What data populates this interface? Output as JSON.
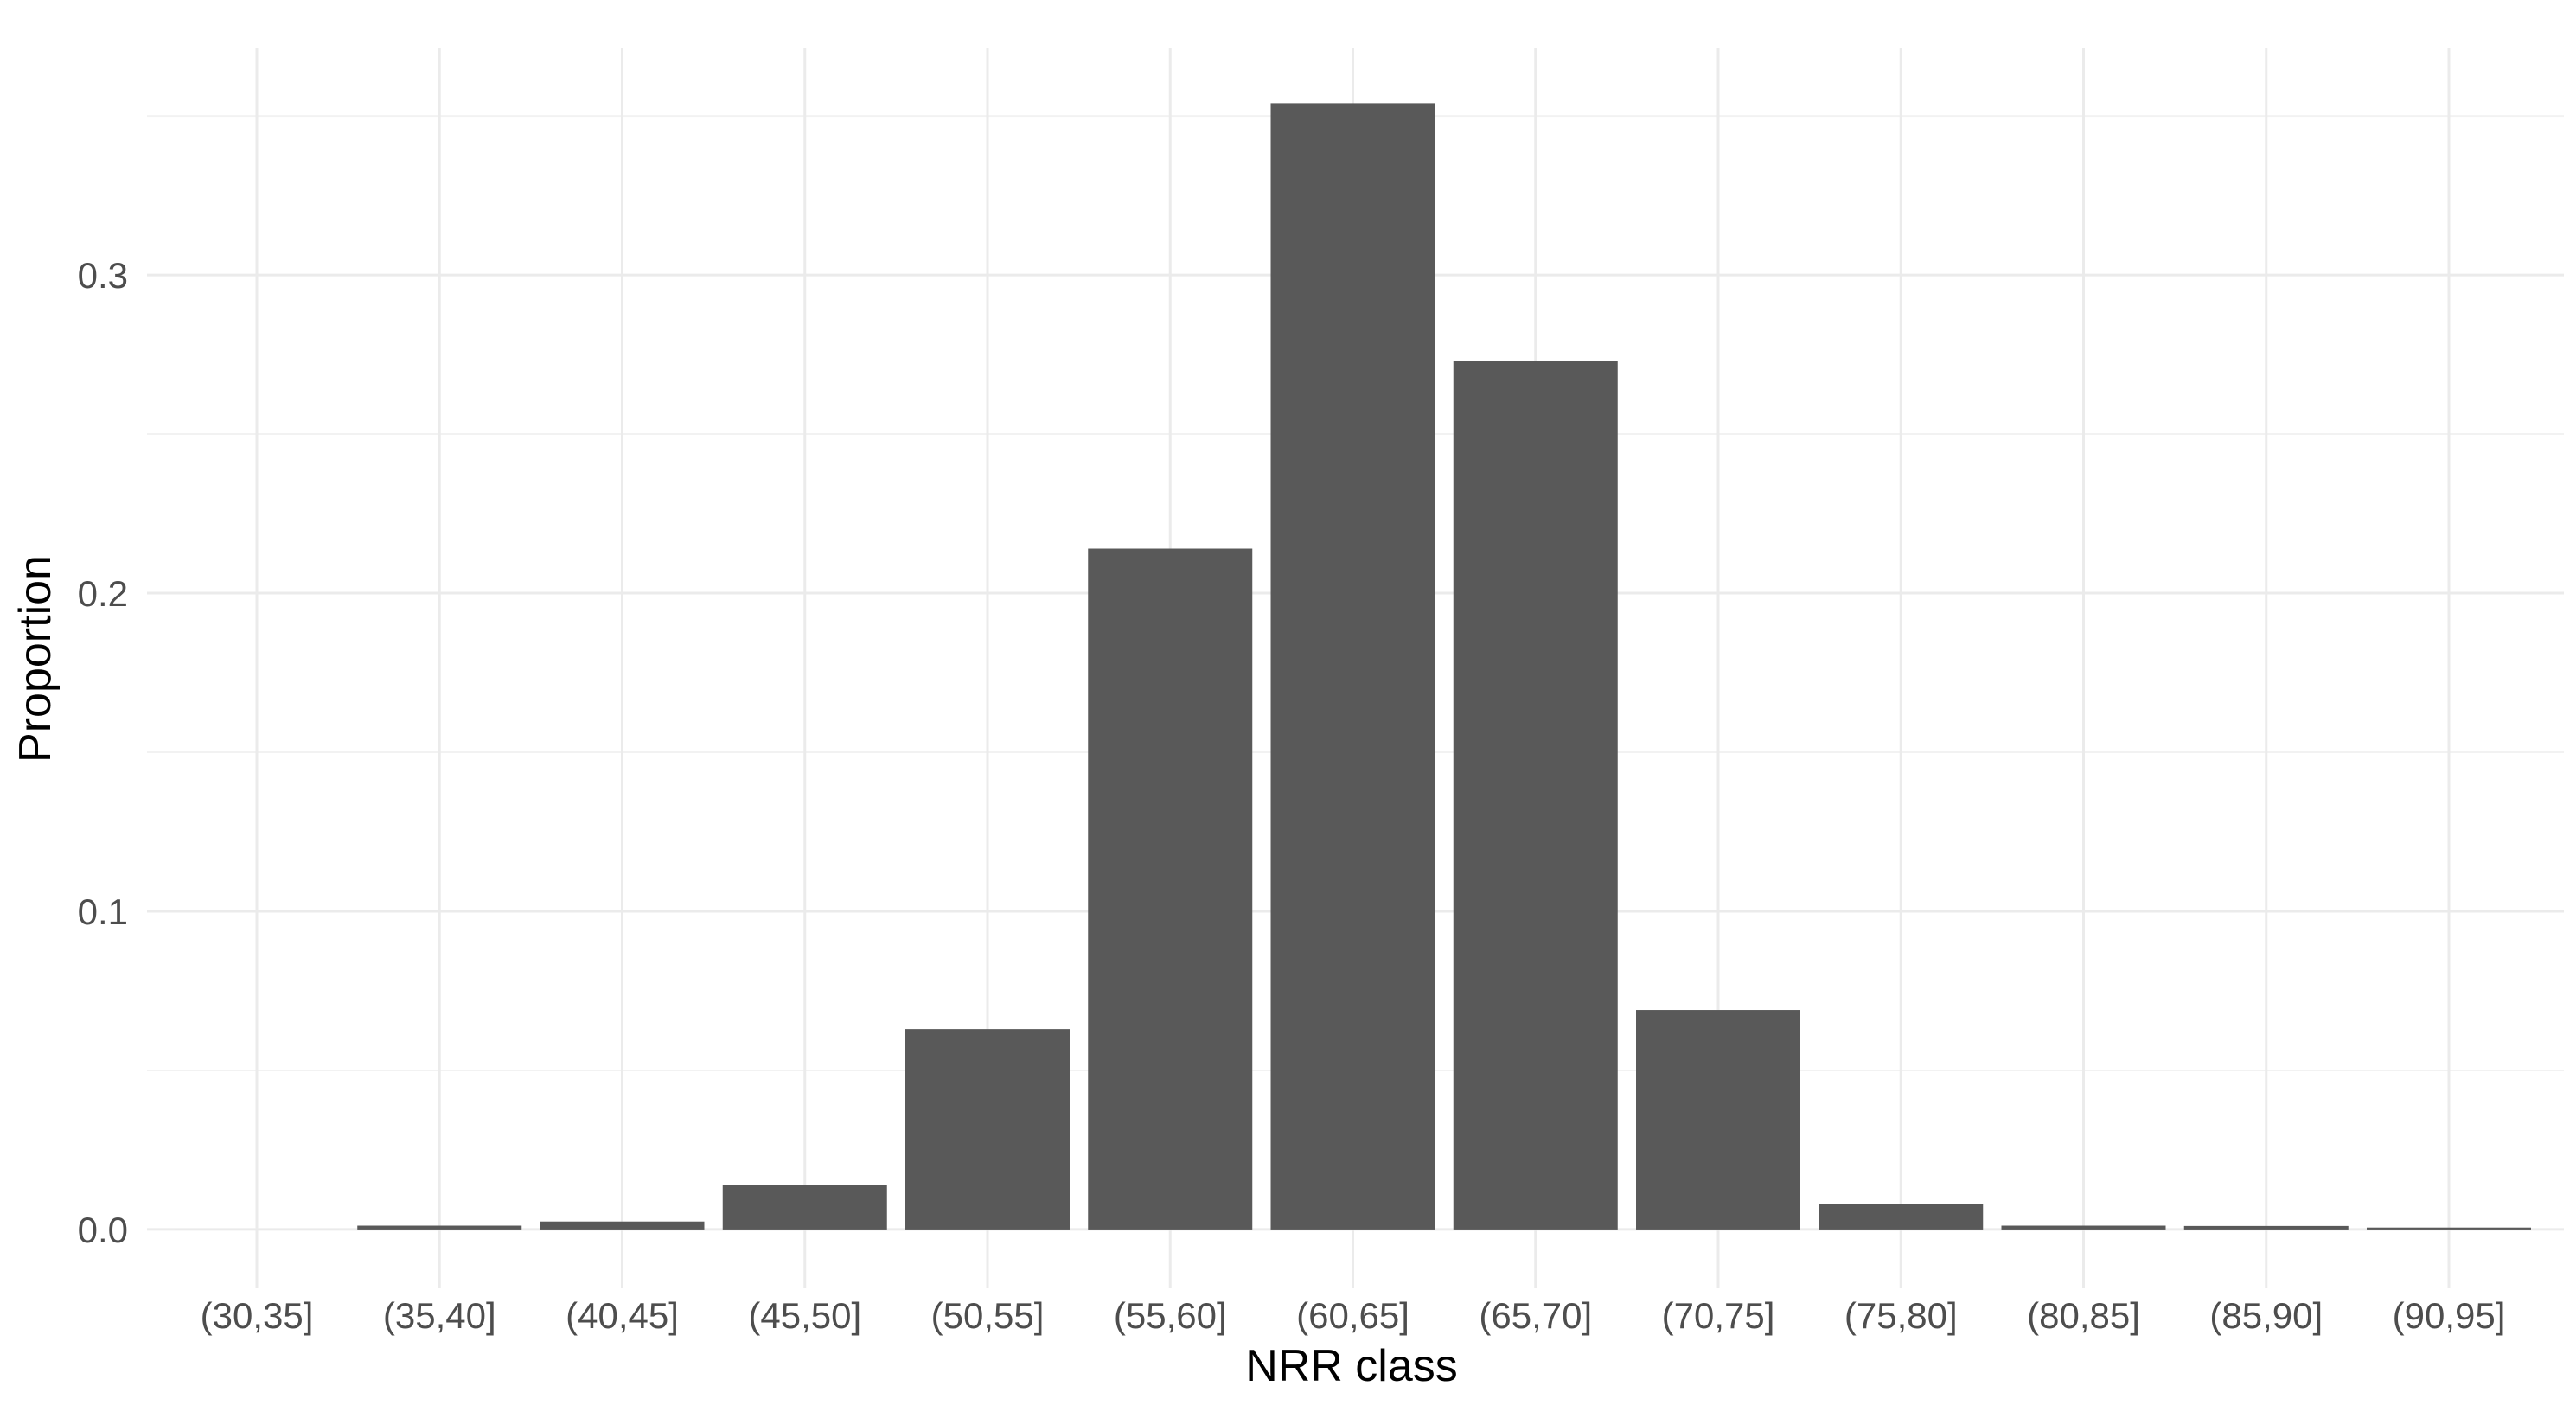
{
  "chart_data": {
    "type": "bar",
    "title": "",
    "xlabel": "NRR class",
    "ylabel": "Proportion",
    "categories": [
      "(30,35]",
      "(35,40]",
      "(40,45]",
      "(45,50]",
      "(50,55]",
      "(55,60]",
      "(60,65]",
      "(65,70]",
      "(70,75]",
      "(75,80]",
      "(80,85]",
      "(85,90]",
      "(90,95]"
    ],
    "values": [
      0.0,
      0.0012,
      0.0025,
      0.014,
      0.063,
      0.214,
      0.354,
      0.273,
      0.069,
      0.008,
      0.0012,
      0.0011,
      0.0006
    ],
    "ylim": [
      -0.0185,
      0.3715
    ],
    "yticks": [
      0.0,
      0.1,
      0.2,
      0.3
    ],
    "ytick_labels": [
      "0.0",
      "0.1",
      "0.2",
      "0.3"
    ],
    "grid": true,
    "legend": "none",
    "colors": {
      "bar": "#595959",
      "grid_major": "#ebebeb",
      "grid_minor": "#f2f2f2",
      "tick_text": "#4d4d4d",
      "axis_title": "#000000",
      "background": "#ffffff"
    }
  }
}
